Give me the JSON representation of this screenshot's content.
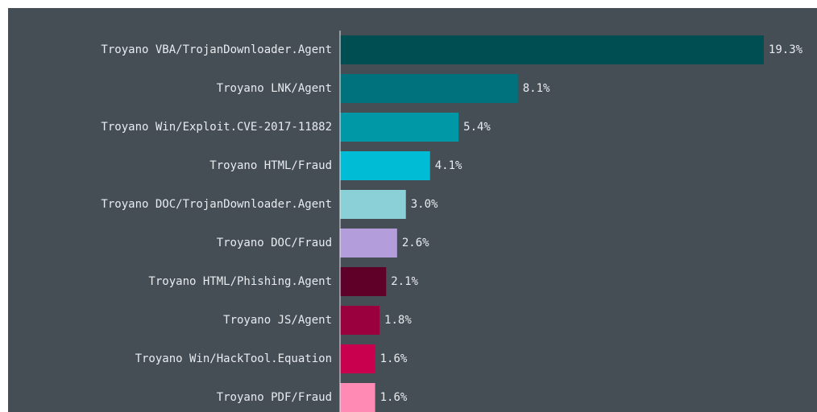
{
  "chart_data": {
    "type": "bar",
    "orientation": "horizontal",
    "categories": [
      "Troyano VBA/TrojanDownloader.Agent",
      "Troyano LNK/Agent",
      "Troyano Win/Exploit.CVE-2017-11882",
      "Troyano HTML/Fraud",
      "Troyano DOC/TrojanDownloader.Agent",
      "Troyano DOC/Fraud",
      "Troyano HTML/Phishing.Agent",
      "Troyano JS/Agent",
      "Troyano Win/HackTool.Equation",
      "Troyano PDF/Fraud"
    ],
    "values": [
      19.3,
      8.1,
      5.4,
      4.1,
      3.0,
      2.6,
      2.1,
      1.8,
      1.6,
      1.6
    ],
    "value_labels": [
      "19.3%",
      "8.1%",
      "5.4%",
      "4.1%",
      "3.0%",
      "2.6%",
      "2.1%",
      "1.8%",
      "1.6%",
      "1.6%"
    ],
    "colors": [
      "#004d52",
      "#00727d",
      "#0097a7",
      "#00bcd4",
      "#8ad0d6",
      "#b39ddb",
      "#5f0028",
      "#99003d",
      "#c8004e",
      "#ff8ab4"
    ]
  }
}
